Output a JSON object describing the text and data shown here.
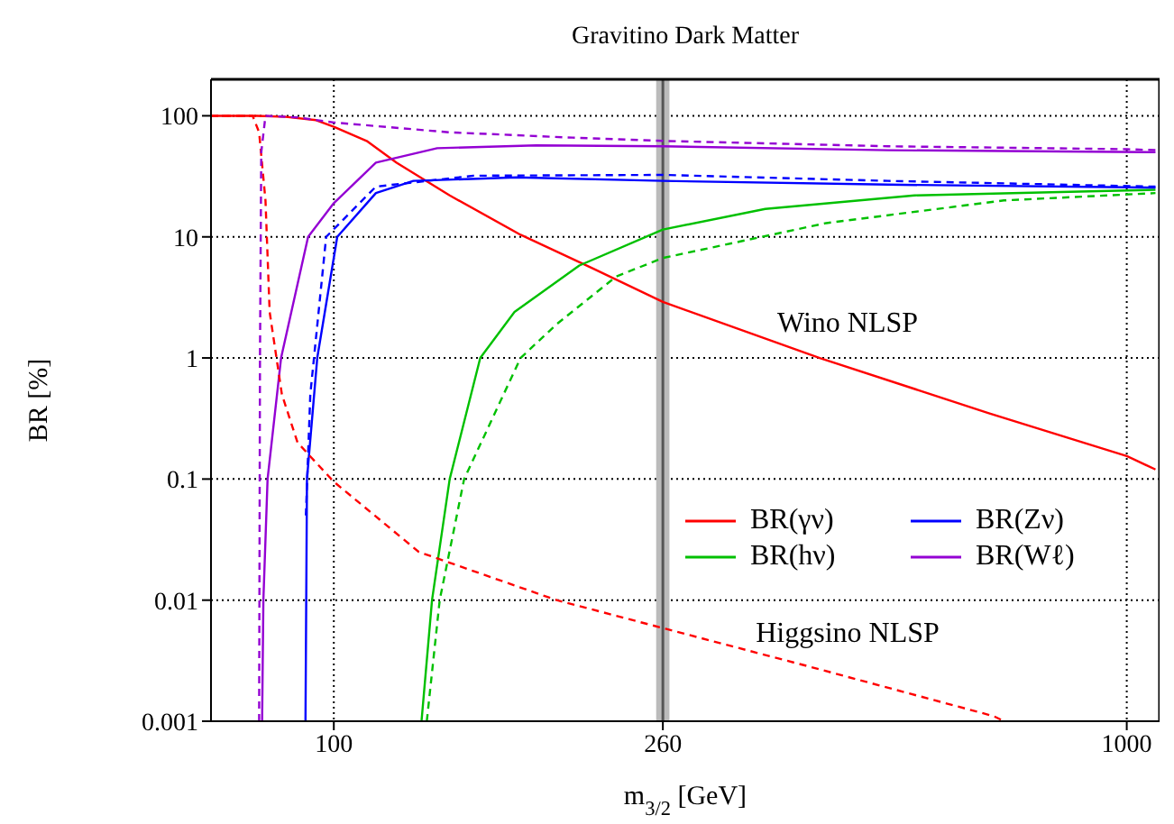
{
  "chart_data": {
    "type": "line",
    "title": "Gravitino Dark Matter",
    "xlabel": "m$_{3/2}$ [GeV]",
    "ylabel": "BR [%]",
    "log": "xy",
    "grid": true,
    "legend": "bottom right",
    "xlim": [
      70,
      1100
    ],
    "xticks": [
      100,
      260,
      1000
    ],
    "ylim": [
      0.001,
      200
    ],
    "yticks": [
      0.001,
      0.01,
      0.1,
      1,
      10,
      100
    ],
    "annotations": [
      "Wino NLSP",
      "Higgsino NLSP"
    ],
    "bands": [
      {
        "axis": "x",
        "from": 255,
        "to": 265,
        "color": "#bbbbbb"
      }
    ],
    "ref_lines": [
      {
        "axis": "x",
        "value": 260,
        "color": "#555555"
      }
    ],
    "series": [
      {
        "name": "BR(γν)",
        "color": "#ff0000",
        "line_style": "solid",
        "x": [
          70,
          80,
          87,
          95,
          100,
          110,
          120,
          140,
          172,
          212,
          260,
          410,
          670,
          1000,
          1087
        ],
        "values": [
          100,
          100,
          98,
          92,
          81,
          62,
          41,
          22,
          10.4,
          5.5,
          2.9,
          1,
          0.35,
          0.155,
          0.12
        ]
      },
      {
        "name": "BR(hν)",
        "color": "#00c000",
        "line_style": "solid",
        "x": [
          129,
          133,
          140,
          153,
          169,
          204,
          260,
          350,
          540,
          1087
        ],
        "values": [
          0.001,
          0.01,
          0.1,
          1,
          2.4,
          5.8,
          11.5,
          17,
          22,
          24.5
        ]
      },
      {
        "name": "BR(Zν)",
        "color": "#0000ff",
        "line_style": "solid",
        "x": [
          92.1,
          92.5,
          95.3,
          101,
          113,
          126,
          170,
          260,
          500,
          1087
        ],
        "values": [
          0.001,
          0.1,
          1,
          10,
          23,
          29,
          31,
          29,
          27,
          25.5
        ]
      },
      {
        "name": "BR(Wℓ)",
        "color": "#9400d3",
        "line_style": "solid",
        "x": [
          81.2,
          81.5,
          82.5,
          85.8,
          92.8,
          100,
          113,
          135,
          180,
          260,
          500,
          1087
        ],
        "values": [
          0.001,
          0.01,
          0.1,
          1,
          10,
          19,
          41,
          54,
          57,
          56,
          52,
          50
        ]
      },
      {
        "color": "#ff0000",
        "line_style": "dashed",
        "x": [
          70,
          79,
          80.5,
          82,
          83,
          86,
          90,
          100,
          128,
          191,
          262,
          400,
          680,
          700
        ],
        "values": [
          100,
          100,
          73,
          20,
          2.4,
          0.5,
          0.2,
          0.095,
          0.025,
          0.01,
          0.0058,
          0.0028,
          0.0011,
          0.001
        ]
      },
      {
        "color": "#00c000",
        "line_style": "dashed",
        "x": [
          131,
          136,
          146,
          172,
          191,
          227,
          260,
          418,
          700,
          1087
        ],
        "values": [
          0.001,
          0.01,
          0.1,
          1,
          1.9,
          4.7,
          6.7,
          13,
          20,
          23
        ]
      },
      {
        "color": "#0000ff",
        "line_style": "dashed",
        "x": [
          92.2,
          93.4,
          94.4,
          97.8,
          113,
          150,
          260,
          500,
          1087
        ],
        "values": [
          0.05,
          0.5,
          1,
          10,
          26,
          32,
          32.5,
          29,
          26
        ]
      },
      {
        "color": "#9400d3",
        "line_style": "dashed",
        "x": [
          80.5,
          80.7,
          81,
          82,
          90,
          100,
          140,
          200,
          260,
          500,
          1000,
          1087
        ],
        "values": [
          0.001,
          1,
          50,
          100,
          97,
          88,
          73,
          66,
          62,
          56,
          53,
          52
        ]
      }
    ]
  }
}
